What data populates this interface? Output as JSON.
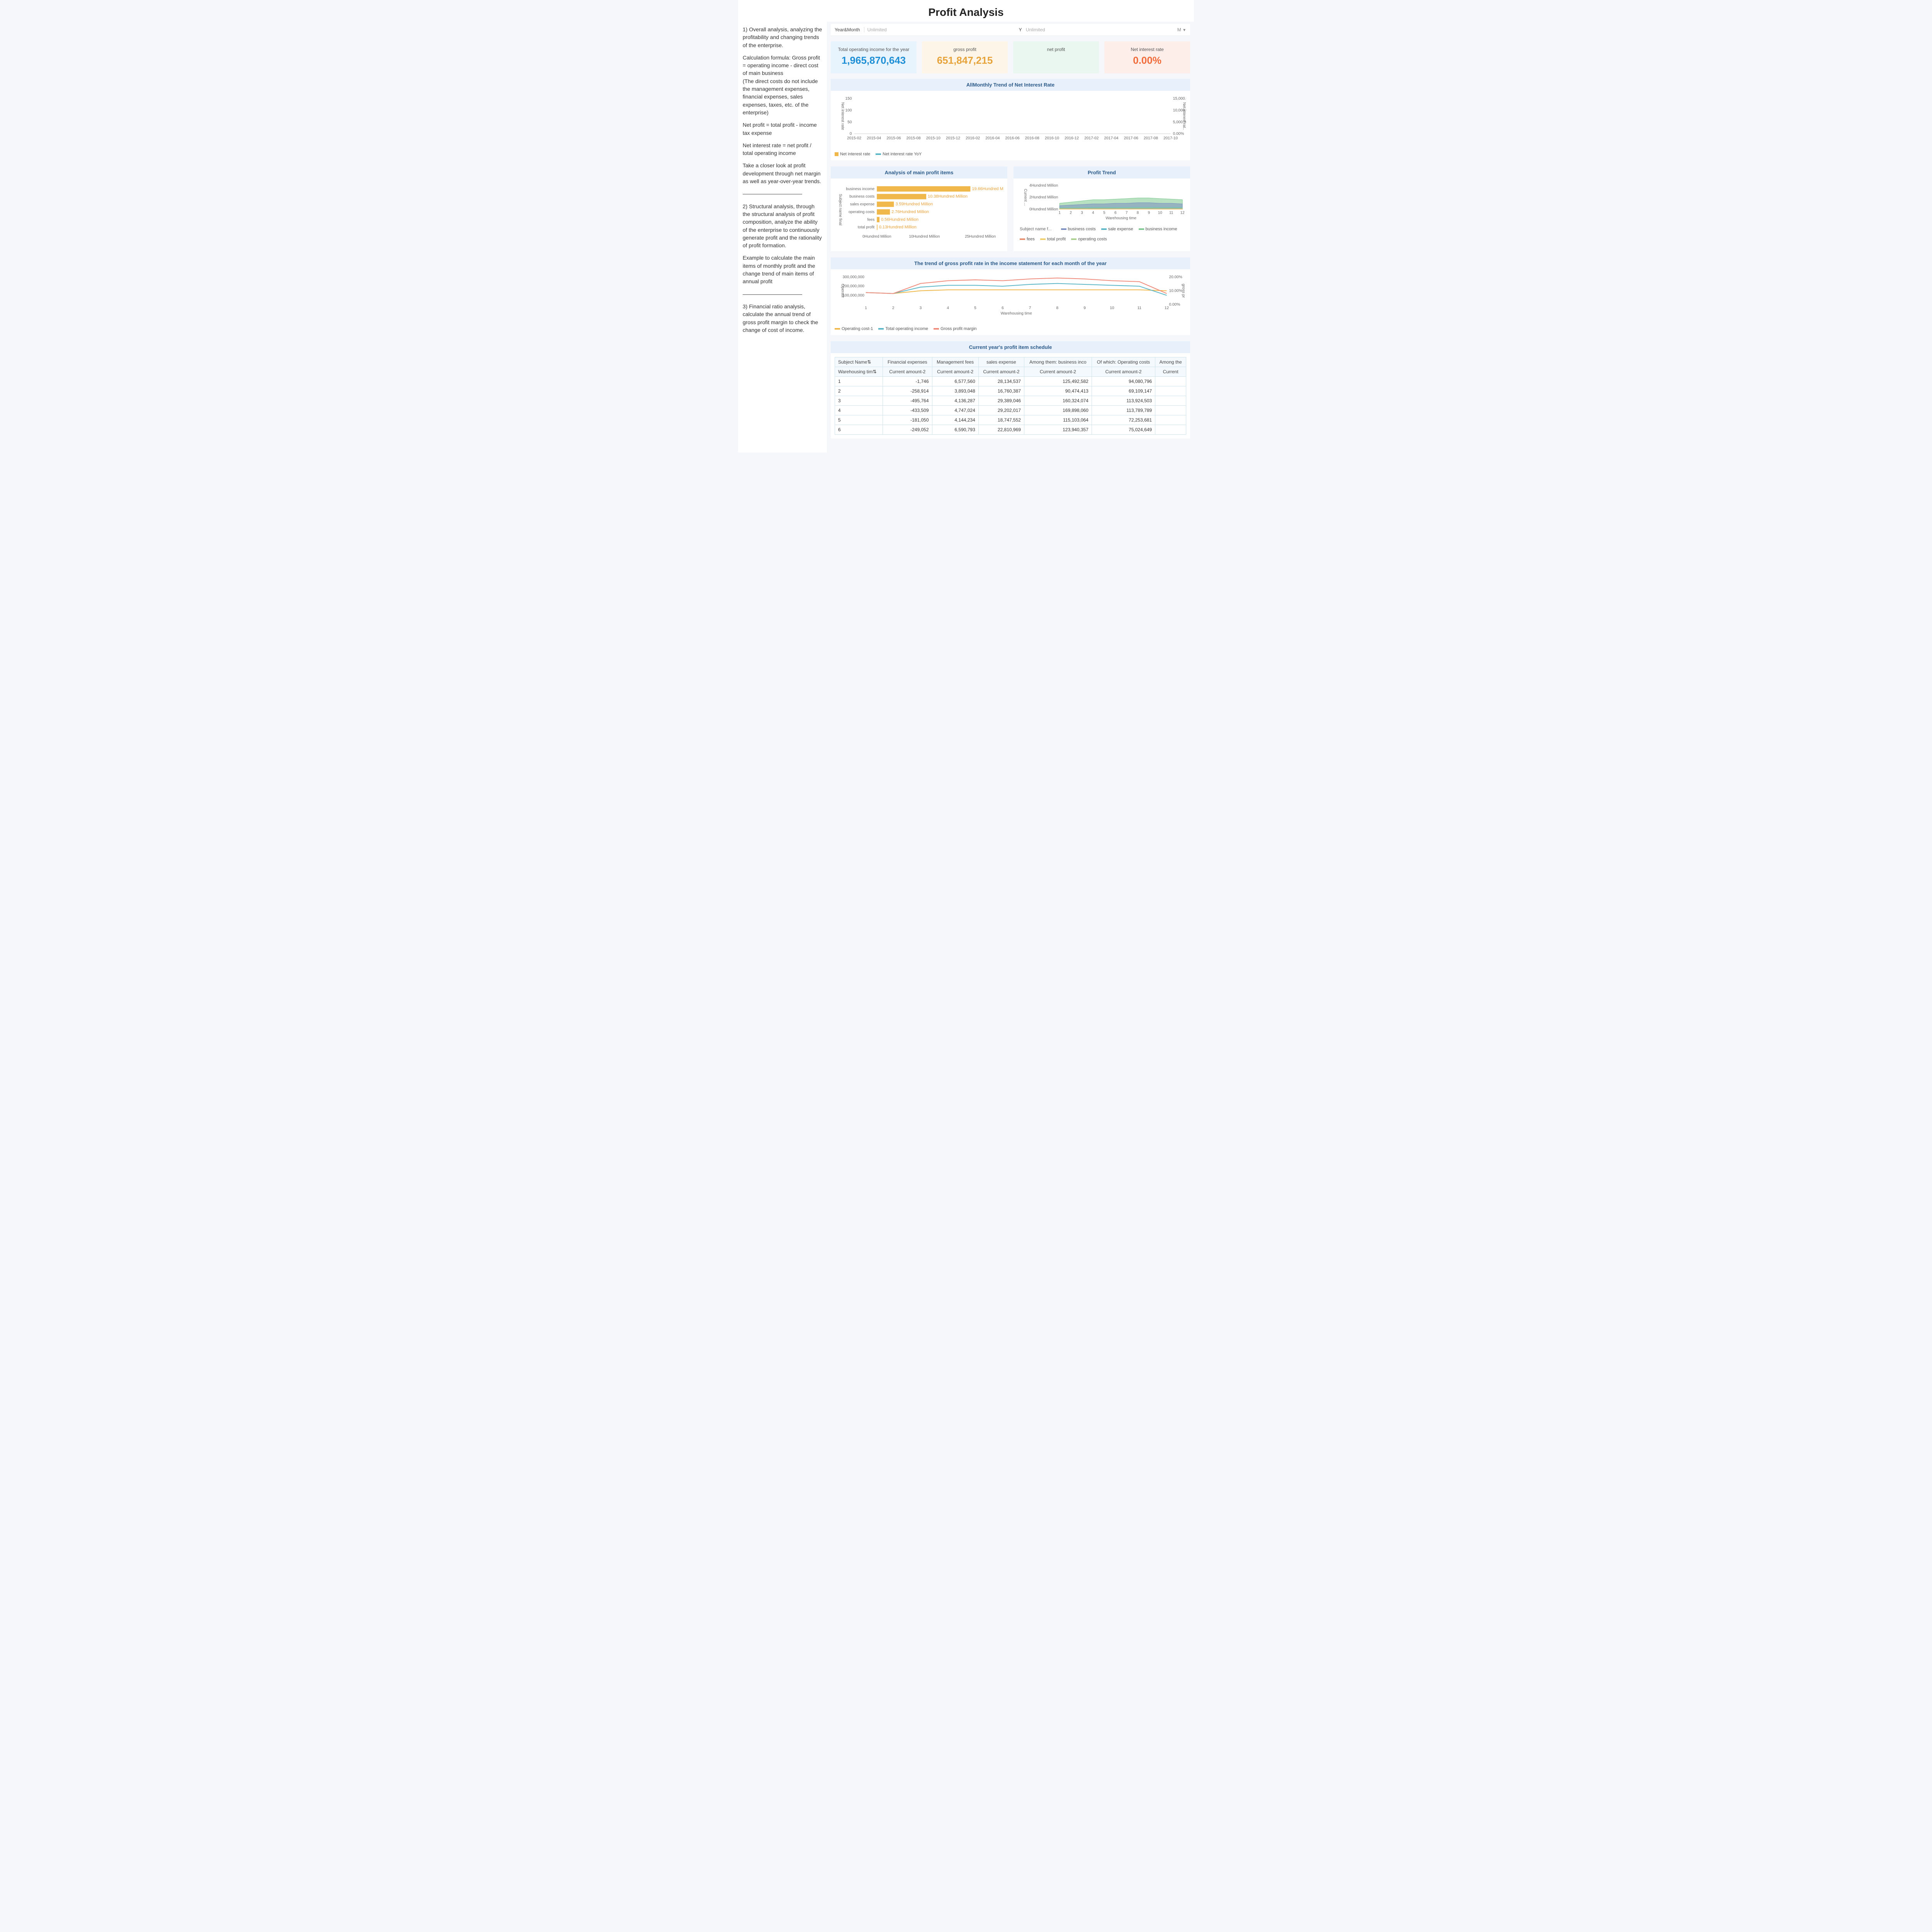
{
  "page_title": "Profit Analysis",
  "filters": {
    "label1": "Year&Month",
    "value1": "Unlimited",
    "label2": "Y",
    "value2": "Unlimited",
    "drop": "M"
  },
  "kpis": [
    {
      "label": "Total operating income for the year",
      "value": "1,965,870,643",
      "bg": "#e8f4fd",
      "fg": "#1e8fd6"
    },
    {
      "label": "gross profit",
      "value": "651,847,215",
      "bg": "#fdf6e8",
      "fg": "#e8a23a"
    },
    {
      "label": "net profit",
      "value": "",
      "bg": "#e9f7f0",
      "fg": "#3aa678"
    },
    {
      "label": "Net interest rate",
      "value": "0.00%",
      "bg": "#fdeeea",
      "fg": "#f26b3a"
    }
  ],
  "trend_chart": {
    "title": "AllMonthly Trend of Net Interest Rate",
    "left_axis_label": "Net interest rate",
    "right_axis_label": "Net interest rat..",
    "left_ticks": [
      "0",
      "50",
      "100",
      "150"
    ],
    "right_ticks": [
      "0.00%",
      "5,000.00%",
      "10,000.00%",
      "15,000.00%"
    ],
    "x_ticks": [
      "2015-02",
      "2015-04",
      "2015-06",
      "2015-08",
      "2015-10",
      "2015-12",
      "2016-02",
      "2016-04",
      "2016-06",
      "2016-08",
      "2016-10",
      "2016-12",
      "2017-02",
      "2017-04",
      "2017-06",
      "2017-08",
      "2017-10"
    ],
    "legend": [
      {
        "label": "Net interest rate",
        "color": "#f0b84a",
        "type": "box"
      },
      {
        "label": "Net interest rate YoY",
        "color": "#59b6c7",
        "type": "line"
      }
    ]
  },
  "profit_items": {
    "title": "Analysis of main profit items",
    "y_axis_label": "Subject name final",
    "x_ticks": [
      "0Hundred Million",
      "10Hundred Million",
      "25Hundred Million"
    ],
    "max": 25,
    "bar_color": "#f0b84a",
    "label_color": "#e8a23a",
    "items": [
      {
        "name": "business income",
        "value": 19.66,
        "text": "19.66Hundred Million"
      },
      {
        "name": "business costs",
        "value": 10.38,
        "text": "10.38Hundred Million"
      },
      {
        "name": "sales expense",
        "value": 3.59,
        "text": "3.59Hundred Million"
      },
      {
        "name": "operating costs",
        "value": 2.76,
        "text": "2.76Hundred Million"
      },
      {
        "name": "fees",
        "value": 0.56,
        "text": "0.56Hundred Million"
      },
      {
        "name": "total profit",
        "value": 0.13,
        "text": "0.13Hundred Million"
      }
    ]
  },
  "profit_trend": {
    "title": "Profit Trend",
    "y_axis_label": "Current ...",
    "y_ticks": [
      "0Hundred Million",
      "2Hundred Million",
      "4Hundred Million"
    ],
    "x_label": "Warehousing time",
    "x_ticks": [
      "1",
      "2",
      "3",
      "4",
      "5",
      "6",
      "7",
      "8",
      "9",
      "10",
      "11",
      "12"
    ],
    "legend_pre": "Subject name f...",
    "series": [
      {
        "name": "business income",
        "color": "#7ec98f",
        "values": [
          1.0,
          1.2,
          1.4,
          1.6,
          1.6,
          1.7,
          1.8,
          1.9,
          1.9,
          1.8,
          1.7,
          1.6
        ]
      },
      {
        "name": "business costs",
        "color": "#7a8fbf",
        "values": [
          0.6,
          0.7,
          0.8,
          0.9,
          0.9,
          1.0,
          1.0,
          1.1,
          1.1,
          1.0,
          1.0,
          0.9
        ]
      },
      {
        "name": "sale expense",
        "color": "#59b6c7",
        "values": [
          0.25,
          0.26,
          0.28,
          0.3,
          0.3,
          0.31,
          0.31,
          0.32,
          0.32,
          0.31,
          0.3,
          0.29
        ]
      },
      {
        "name": "operating costs",
        "color": "#a9d08e",
        "values": [
          0.2,
          0.21,
          0.22,
          0.23,
          0.23,
          0.24,
          0.24,
          0.25,
          0.25,
          0.24,
          0.23,
          0.22
        ]
      },
      {
        "name": "fees",
        "color": "#e88f6f",
        "values": [
          0.04,
          0.05,
          0.05,
          0.05,
          0.05,
          0.05,
          0.05,
          0.05,
          0.05,
          0.05,
          0.05,
          0.05
        ]
      },
      {
        "name": "total profit",
        "color": "#f0cf6a",
        "values": [
          0.01,
          0.01,
          0.01,
          0.01,
          0.01,
          0.01,
          0.01,
          0.01,
          0.01,
          0.01,
          0.01,
          0.01
        ]
      }
    ],
    "legend": [
      {
        "label": "business costs",
        "color": "#7a8fbf"
      },
      {
        "label": "sale expense",
        "color": "#59b6c7"
      },
      {
        "label": "business income",
        "color": "#7ec98f"
      },
      {
        "label": "fees",
        "color": "#e88f6f"
      },
      {
        "label": "total profit",
        "color": "#f0cf6a"
      },
      {
        "label": "operating costs",
        "color": "#a9d08e"
      }
    ]
  },
  "gross_trend": {
    "title": "The trend of gross profit rate in the income statement for each month of the year",
    "left_axis_label": "Operatir",
    "right_axis_label": "gross pr",
    "left_ticks": [
      "100,000,000",
      "200,000,000",
      "300,000,000"
    ],
    "right_ticks": [
      "0.00%",
      "10.00%",
      "20.00%"
    ],
    "x_label": "Warehousing time",
    "x_ticks": [
      "1",
      "2",
      "3",
      "4",
      "5",
      "6",
      "7",
      "8",
      "9",
      "10",
      "11",
      "12"
    ],
    "series": [
      {
        "name": "Operating cost-1",
        "color": "#f0b84a",
        "values": [
          130,
          120,
          150,
          160,
          160,
          160,
          160,
          160,
          160,
          160,
          160,
          150
        ]
      },
      {
        "name": "Total operating income",
        "color": "#59b6c7",
        "values": [
          130,
          120,
          190,
          210,
          210,
          200,
          220,
          230,
          220,
          210,
          200,
          100
        ]
      },
      {
        "name": "Gross profit margin",
        "color": "#f08a7a",
        "values": [
          130,
          120,
          230,
          260,
          270,
          260,
          280,
          290,
          280,
          260,
          250,
          120
        ]
      }
    ],
    "ymax": 300,
    "legend": [
      {
        "label": "Operating cost-1",
        "color": "#f0b84a"
      },
      {
        "label": "Total operating income",
        "color": "#59b6c7"
      },
      {
        "label": "Gross profit margin",
        "color": "#f08a7a"
      }
    ]
  },
  "schedule": {
    "title": "Current year's profit item schedule",
    "header_row1": [
      "Subject Name⇅",
      "Financial expenses",
      "Management fees",
      "sales expense",
      "Among them: business inco",
      "Of which: Operating costs",
      "Among the"
    ],
    "header_row2": [
      "Warehousing tim⇅",
      "Current amount-2",
      "Current amount-2",
      "Current amount-2",
      "Current amount-2",
      "Current amount-2",
      "Current"
    ],
    "rows": [
      [
        "1",
        "-1,746",
        "6,577,560",
        "28,134,537",
        "125,492,582",
        "94,080,796",
        ""
      ],
      [
        "2",
        "-258,914",
        "3,893,048",
        "16,760,387",
        "90,474,413",
        "69,109,147",
        ""
      ],
      [
        "3",
        "-495,764",
        "4,136,287",
        "29,389,046",
        "160,324,074",
        "113,924,503",
        ""
      ],
      [
        "4",
        "-433,509",
        "4,747,024",
        "29,202,017",
        "169,898,060",
        "113,789,789",
        ""
      ],
      [
        "5",
        "-181,050",
        "4,144,234",
        "18,747,552",
        "115,103,064",
        "72,253,681",
        ""
      ],
      [
        "6",
        "-249,052",
        "6,590,793",
        "22,810,969",
        "123,940,357",
        "75,024,649",
        ""
      ]
    ]
  },
  "sidebar_text": [
    "1) Overall analysis, analyzing the profitability and changing trends of the enterprise.",
    "Calculation formula: Gross profit = operating income - direct cost of main business\n(The direct costs do not include the management expenses, financial expenses, sales expenses, taxes, etc. of the enterprise)",
    "Net profit = total profit - income tax expense",
    "Net interest rate = net profit / total operating income",
    "Take a closer look at profit development through net margin as well as year-over-year trends.",
    "———————————",
    "2) Structural analysis, through the structural analysis of profit composition, analyze the ability of the enterprise to continuously generate profit and the rationality of profit formation.",
    "Example to calculate the main items of monthly profit and the change trend of main items of annual profit",
    "———————————",
    "3) Financial ratio analysis, calculate the annual trend of gross profit margin to check the change of cost of income."
  ]
}
